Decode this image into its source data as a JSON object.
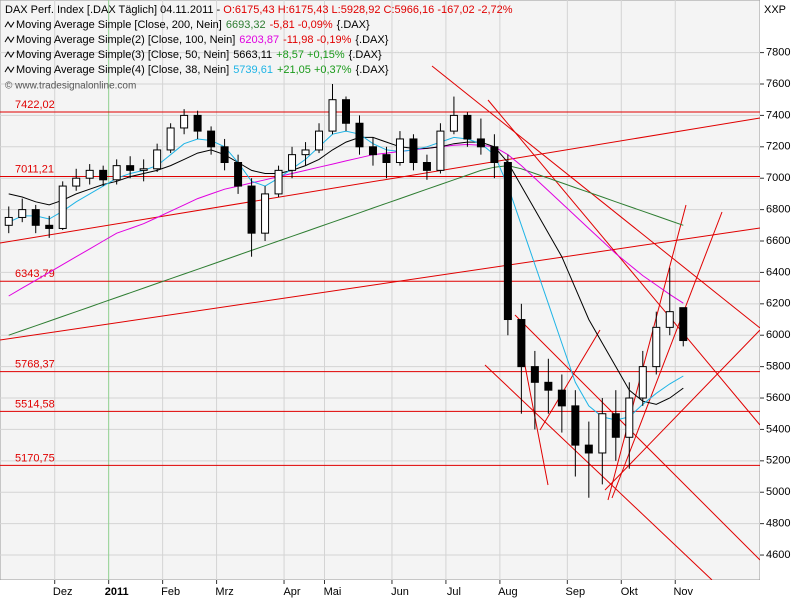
{
  "chart_data": {
    "type": "candlestick",
    "header": {
      "symbol": "DAX Perf. Index [.DAX  Täglich] 04.11.2011 - ",
      "quote": "O:6175,43 H:6175,43 L:5928,92 C:5966,16 -167,02 -2,72%",
      "quote_color": "#e00000"
    },
    "watermark": "© www.tradesignalonline.com",
    "y_axis_label": "XXP",
    "categories": [
      null,
      null,
      null,
      null,
      "Dez",
      null,
      null,
      null,
      "2011",
      null,
      null,
      null,
      "Feb",
      null,
      null,
      null,
      "Mrz",
      null,
      null,
      null,
      null,
      "Apr",
      null,
      null,
      "Mai",
      null,
      null,
      null,
      null,
      "Jun",
      null,
      null,
      null,
      "Jul",
      null,
      null,
      null,
      "Aug",
      null,
      null,
      null,
      null,
      "Sep",
      null,
      null,
      null,
      "Okt",
      null,
      null,
      null,
      "Nov"
    ],
    "open": [
      6700,
      6750,
      6800,
      6700,
      6680,
      6950,
      7000,
      7050,
      6990,
      7080,
      7050,
      7060,
      7180,
      7320,
      7400,
      7300,
      7200,
      7100,
      6950,
      6650,
      6900,
      7050,
      7150,
      7180,
      7300,
      7500,
      7350,
      7200,
      7150,
      7100,
      7250,
      7100,
      7050,
      7300,
      7400,
      7250,
      7200,
      7100,
      6100,
      5800,
      5700,
      5650,
      5550,
      5300,
      5250,
      5500,
      5350,
      5600,
      5800,
      6050,
      6175.43
    ],
    "high": [
      6820,
      6870,
      6830,
      6760,
      6980,
      7060,
      7090,
      7080,
      7120,
      7140,
      7120,
      7220,
      7350,
      7440,
      7430,
      7330,
      7250,
      7150,
      7000,
      6950,
      7080,
      7200,
      7230,
      7350,
      7600,
      7520,
      7400,
      7260,
      7200,
      7300,
      7280,
      7150,
      7350,
      7520,
      7420,
      7380,
      7280,
      7150,
      6200,
      5900,
      5850,
      5750,
      5650,
      5450,
      5600,
      5650,
      5700,
      5900,
      6150,
      6430,
      6175.43
    ],
    "low": [
      6650,
      6720,
      6650,
      6620,
      6670,
      6920,
      6960,
      6950,
      6960,
      7000,
      6980,
      7040,
      7160,
      7280,
      7250,
      7150,
      7050,
      6900,
      6500,
      6600,
      6880,
      7000,
      7080,
      7160,
      7280,
      7300,
      7150,
      7080,
      7000,
      7080,
      7050,
      6990,
      7030,
      7280,
      7200,
      7150,
      7000,
      6000,
      5500,
      5400,
      5500,
      5380,
      5100,
      4965,
      5050,
      5200,
      5150,
      5550,
      5750,
      6000,
      5928.92
    ],
    "close": [
      6750,
      6800,
      6700,
      6680,
      6950,
      7000,
      7050,
      6990,
      7080,
      7050,
      7060,
      7180,
      7320,
      7400,
      7300,
      7200,
      7100,
      6950,
      6650,
      6900,
      7050,
      7150,
      7180,
      7300,
      7500,
      7350,
      7200,
      7150,
      7100,
      7250,
      7100,
      7050,
      7300,
      7400,
      7250,
      7200,
      7100,
      6100,
      5800,
      5700,
      5650,
      5550,
      5300,
      5250,
      5500,
      5350,
      5600,
      5800,
      6050,
      6150,
      5966.16
    ],
    "series": [
      {
        "name": "Moving Average Simple [Close, 200, Nein]",
        "color": "#2e7d32",
        "value_label": "6693,32",
        "change": "-5,81 -0,09%",
        "change_color": "#e00000",
        "source": "{.DAX}",
        "values": [
          6000,
          6030,
          6060,
          6090,
          6120,
          6150,
          6180,
          6210,
          6240,
          6270,
          6300,
          6330,
          6360,
          6390,
          6420,
          6450,
          6480,
          6510,
          6540,
          6570,
          6600,
          6630,
          6660,
          6690,
          6720,
          6750,
          6780,
          6810,
          6840,
          6870,
          6900,
          6930,
          6960,
          6990,
          7020,
          7050,
          7070,
          7080,
          7060,
          7030,
          7000,
          6970,
          6940,
          6910,
          6880,
          6850,
          6820,
          6790,
          6760,
          6730,
          6700
        ]
      },
      {
        "name": "Moving Average Simple(2) [Close, 100, Nein]",
        "color": "#e000e0",
        "value_label": "6203,87",
        "change": "-11,98 -0,19%",
        "change_color": "#e00000",
        "source": "{.DAX}",
        "values": [
          6250,
          6300,
          6350,
          6400,
          6450,
          6500,
          6550,
          6600,
          6650,
          6680,
          6710,
          6750,
          6790,
          6830,
          6870,
          6900,
          6930,
          6950,
          6970,
          6990,
          7010,
          7030,
          7050,
          7070,
          7090,
          7110,
          7130,
          7150,
          7160,
          7170,
          7180,
          7190,
          7200,
          7210,
          7215,
          7210,
          7200,
          7150,
          7080,
          7000,
          6920,
          6840,
          6760,
          6680,
          6600,
          6520,
          6450,
          6380,
          6320,
          6260,
          6204
        ]
      },
      {
        "name": "Moving Average Simple(3) [Close, 50, Nein]",
        "color": "#000000",
        "value_label": "5663,11",
        "change": "+8,57 +0,15%",
        "change_color": "#1a9a1a",
        "source": "{.DAX}",
        "values": [
          6900,
          6880,
          6850,
          6830,
          6860,
          6900,
          6930,
          6960,
          6980,
          7010,
          7030,
          7050,
          7080,
          7120,
          7160,
          7180,
          7150,
          7100,
          7050,
          7030,
          7030,
          7050,
          7080,
          7120,
          7180,
          7230,
          7260,
          7260,
          7230,
          7200,
          7190,
          7190,
          7200,
          7220,
          7230,
          7230,
          7200,
          7100,
          6950,
          6800,
          6650,
          6500,
          6300,
          6100,
          5950,
          5800,
          5650,
          5580,
          5560,
          5600,
          5663
        ]
      },
      {
        "name": "Moving Average Simple(4) [Close, 38, Nein]",
        "color": "#1eb4e6",
        "value_label": "5739,61",
        "change": "+21,05 +0,37%",
        "change_color": "#1a9a1a",
        "source": "{.DAX}",
        "values": [
          6720,
          6760,
          6760,
          6740,
          6790,
          6850,
          6900,
          6950,
          7000,
          7030,
          7050,
          7080,
          7150,
          7220,
          7250,
          7240,
          7200,
          7100,
          6980,
          6950,
          7000,
          7060,
          7120,
          7200,
          7280,
          7300,
          7280,
          7220,
          7180,
          7170,
          7180,
          7200,
          7230,
          7260,
          7250,
          7220,
          7150,
          6950,
          6700,
          6450,
          6200,
          5950,
          5700,
          5550,
          5480,
          5460,
          5480,
          5560,
          5630,
          5690,
          5740
        ]
      }
    ],
    "levels": [
      {
        "value": 7422.02,
        "label": "7422,02"
      },
      {
        "value": 7011.21,
        "label": "7011,21"
      },
      {
        "value": 6343.79,
        "label": "6343,79"
      },
      {
        "value": 5768.37,
        "label": "5768,37"
      },
      {
        "value": 5514.58,
        "label": "5514,58"
      },
      {
        "value": 5170.75,
        "label": "5170,75"
      }
    ],
    "level_color": "#e00000",
    "ylim": [
      4441,
      8135
    ],
    "yticks": [
      4600,
      4800,
      5000,
      5200,
      5400,
      5600,
      5800,
      6000,
      6200,
      6400,
      6600,
      6800,
      7000,
      7200,
      7400,
      7600,
      7800
    ],
    "grid": true
  }
}
